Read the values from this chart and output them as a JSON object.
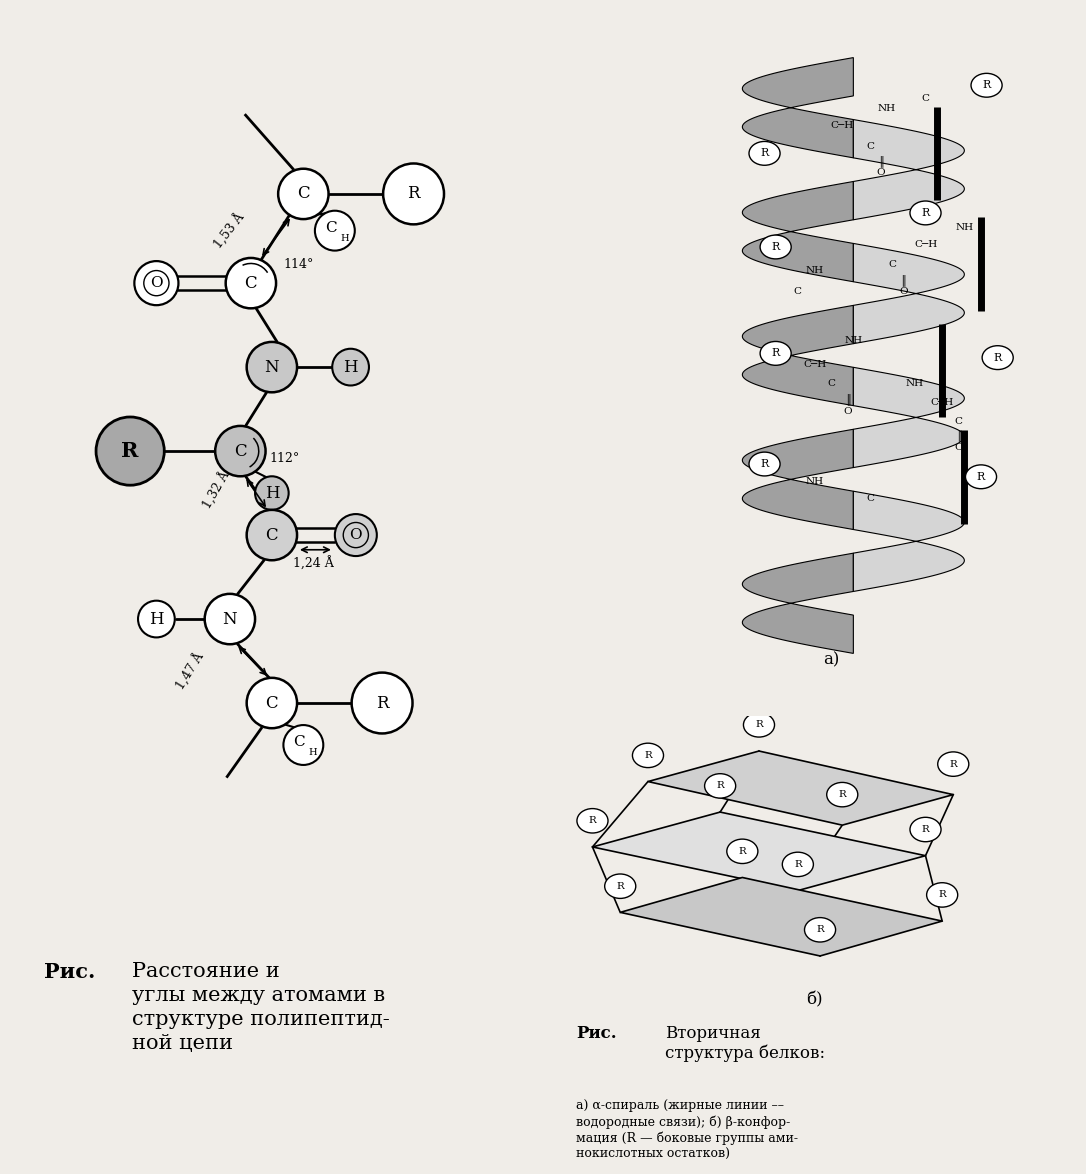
{
  "bg_color": "#f0ede8",
  "left_caption_bold": "Рис.",
  "left_caption_text": "Расстояние и\nуглы между атомами в\nструктуре полипептид-\nной цепи",
  "right_caption_bold": "Рис.",
  "right_caption_text": "Вторичная\nструктура белков:",
  "right_caption_sub": "а) α-спираль (жирные линии ––\nводородные связи); б) β-конфор-\nмация (R — боковые группы ами-\nнокислотных остатков)",
  "label_a": "а)",
  "label_b": "б)"
}
